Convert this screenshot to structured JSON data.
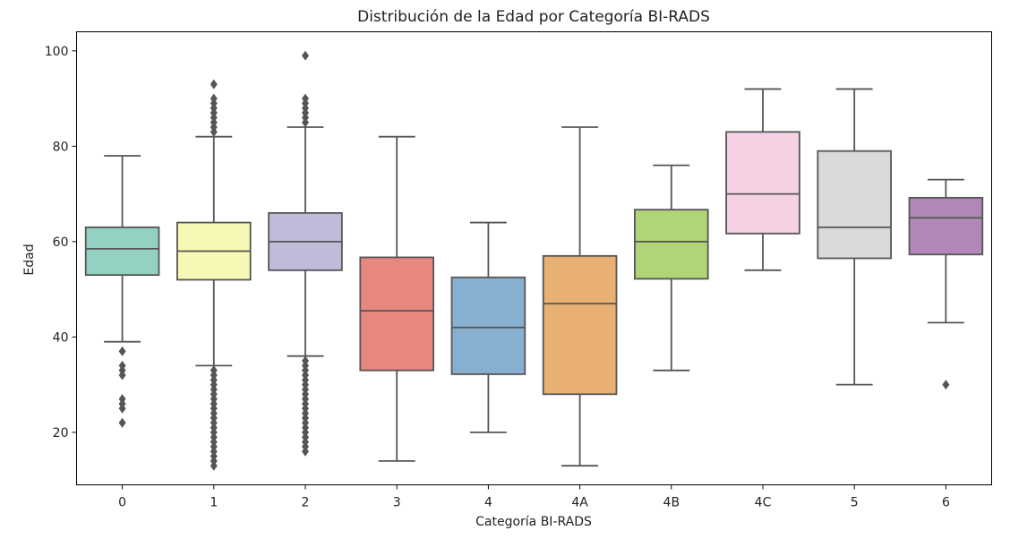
{
  "chart_data": {
    "type": "box",
    "title": "Distribución de la Edad por Categoría BI-RADS",
    "xlabel": "Categoría BI-RADS",
    "ylabel": "Edad",
    "ylim": [
      9,
      104
    ],
    "yticks": [
      20,
      40,
      60,
      80,
      100
    ],
    "grid": false,
    "legend": "none",
    "box_stroke": "#555555",
    "categories": [
      {
        "label": "0",
        "color": "#93d1c3",
        "whisker_low": 39,
        "q1": 53,
        "median": 58.5,
        "q3": 63,
        "whisker_high": 78,
        "outliers": [
          37,
          34,
          33,
          32,
          27,
          26,
          25,
          22
        ]
      },
      {
        "label": "1",
        "color": "#f7f7b6",
        "whisker_low": 34,
        "q1": 52,
        "median": 58,
        "q3": 64,
        "whisker_high": 82,
        "outliers": [
          83,
          84,
          85,
          86,
          87,
          88,
          89,
          90,
          93,
          33,
          32,
          31,
          30,
          29,
          28,
          27,
          26,
          25,
          24,
          23,
          22,
          21,
          20,
          19,
          18,
          17,
          16,
          15,
          14,
          13
        ]
      },
      {
        "label": "2",
        "color": "#bfbbd9",
        "whisker_low": 36,
        "q1": 54,
        "median": 60,
        "q3": 66,
        "whisker_high": 84,
        "outliers": [
          85,
          86,
          87,
          88,
          89,
          90,
          99,
          35,
          34,
          33,
          32,
          31,
          30,
          29,
          28,
          27,
          26,
          25,
          24,
          23,
          22,
          21,
          20,
          19,
          18,
          17,
          16
        ]
      },
      {
        "label": "3",
        "color": "#e8877d",
        "whisker_low": 14,
        "q1": 33,
        "median": 45.5,
        "q3": 56.7,
        "whisker_high": 82,
        "outliers": []
      },
      {
        "label": "4",
        "color": "#87afcf",
        "whisker_low": 20,
        "q1": 32.2,
        "median": 42,
        "q3": 52.5,
        "whisker_high": 64,
        "outliers": []
      },
      {
        "label": "4A",
        "color": "#e8b173",
        "whisker_low": 13,
        "q1": 28,
        "median": 47,
        "q3": 57,
        "whisker_high": 84,
        "outliers": []
      },
      {
        "label": "4B",
        "color": "#b1d476",
        "whisker_low": 33,
        "q1": 52.2,
        "median": 60,
        "q3": 66.7,
        "whisker_high": 76,
        "outliers": []
      },
      {
        "label": "4C",
        "color": "#f6d1e3",
        "whisker_low": 54,
        "q1": 61.7,
        "median": 70,
        "q3": 83,
        "whisker_high": 92,
        "outliers": []
      },
      {
        "label": "5",
        "color": "#d9d9d9",
        "whisker_low": 30,
        "q1": 56.5,
        "median": 63,
        "q3": 79,
        "whisker_high": 92,
        "outliers": []
      },
      {
        "label": "6",
        "color": "#b187b7",
        "whisker_low": 43,
        "q1": 57.3,
        "median": 65,
        "q3": 69.2,
        "whisker_high": 73,
        "outliers": [
          30
        ]
      }
    ]
  }
}
